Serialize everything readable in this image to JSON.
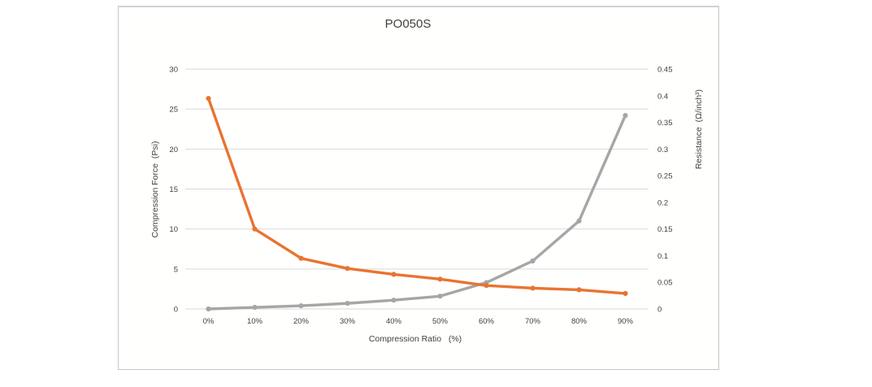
{
  "page": {
    "background_color": "#ffffff",
    "card_border_color": "#c6c6c6",
    "card_background_color": "#fffffe"
  },
  "chart_data": {
    "type": "line",
    "title": "PO050S",
    "xlabel": "Compression Ratio   (%)",
    "ylabel_left": "Compression Force  (Psi)",
    "ylabel_right": "Resistance  (Ω/inch³)",
    "categories": [
      "0%",
      "10%",
      "20%",
      "30%",
      "40%",
      "50%",
      "60%",
      "70%",
      "80%",
      "90%"
    ],
    "y_left_axis": {
      "min": 0,
      "max": 30,
      "tick_labels": [
        "0",
        "5",
        "10",
        "15",
        "20",
        "25",
        "30"
      ],
      "tick_values": [
        0,
        5,
        10,
        15,
        20,
        25,
        30
      ]
    },
    "y_right_axis": {
      "min": 0,
      "max": 0.45,
      "tick_labels": [
        "0",
        "0.05",
        "0.1",
        "0.15",
        "0.2",
        "0.25",
        "0.3",
        "0.35",
        "0.4",
        "0.45"
      ],
      "tick_values": [
        0,
        0.05,
        0.1,
        0.15,
        0.2,
        0.25,
        0.3,
        0.35,
        0.4,
        0.45
      ]
    },
    "series": [
      {
        "name": "Compression Force",
        "axis": "left",
        "color": "#a6a6a6",
        "values": [
          0,
          0.2,
          0.4,
          0.7,
          1.1,
          1.6,
          3.3,
          6,
          11,
          24.2
        ]
      },
      {
        "name": "Resistance",
        "axis": "right",
        "color": "#e87431",
        "values": [
          0.395,
          0.15,
          0.095,
          0.076,
          0.065,
          0.056,
          0.044,
          0.039,
          0.036,
          0.029
        ]
      }
    ],
    "grid": "horizontal",
    "gridline_color": "#d9d9d9",
    "text_color": "#404040",
    "legend_position": "none",
    "marker_style": "circle"
  }
}
